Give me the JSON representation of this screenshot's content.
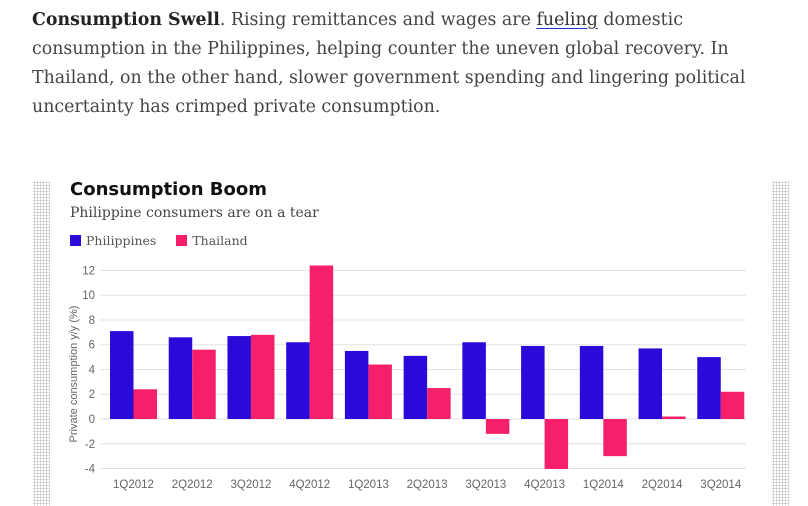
{
  "article": {
    "lead": "Consumption Swell",
    "text_before_link": ". Rising remittances and wages are ",
    "link": "fueling",
    "text_after_link": " domestic consumption in the Philippines, helping counter the uneven global recovery. In Thailand, on the other hand, slower government spending and lingering political uncertainty has crimped private consumption."
  },
  "colors": {
    "philippines": "#2a0ad8",
    "thailand": "#f51f6b",
    "grid": "#e2e2e2",
    "axis_text": "#666666"
  },
  "chart_data": {
    "type": "bar",
    "title": "Consumption Boom",
    "subtitle": "Philippine consumers are on a tear",
    "ylabel": "Private consumption y/y (%)",
    "xlabel": "",
    "ylim": [
      -4,
      12.5
    ],
    "yticks": [
      12,
      10,
      8,
      6,
      4,
      2,
      0,
      -2,
      -4
    ],
    "grid": true,
    "legend_position": "top-left",
    "categories": [
      "1Q2012",
      "2Q2012",
      "3Q2012",
      "4Q2012",
      "1Q2013",
      "2Q2013",
      "3Q2013",
      "4Q2013",
      "1Q2014",
      "2Q2014",
      "3Q2014"
    ],
    "series": [
      {
        "name": "Philippines",
        "values": [
          7.1,
          6.6,
          6.7,
          6.2,
          5.5,
          5.1,
          6.2,
          5.9,
          5.9,
          5.7,
          5.0
        ]
      },
      {
        "name": "Thailand",
        "values": [
          2.4,
          5.6,
          6.8,
          12.4,
          4.4,
          2.5,
          -1.2,
          -4.1,
          -3.0,
          0.2,
          2.2
        ]
      }
    ]
  }
}
